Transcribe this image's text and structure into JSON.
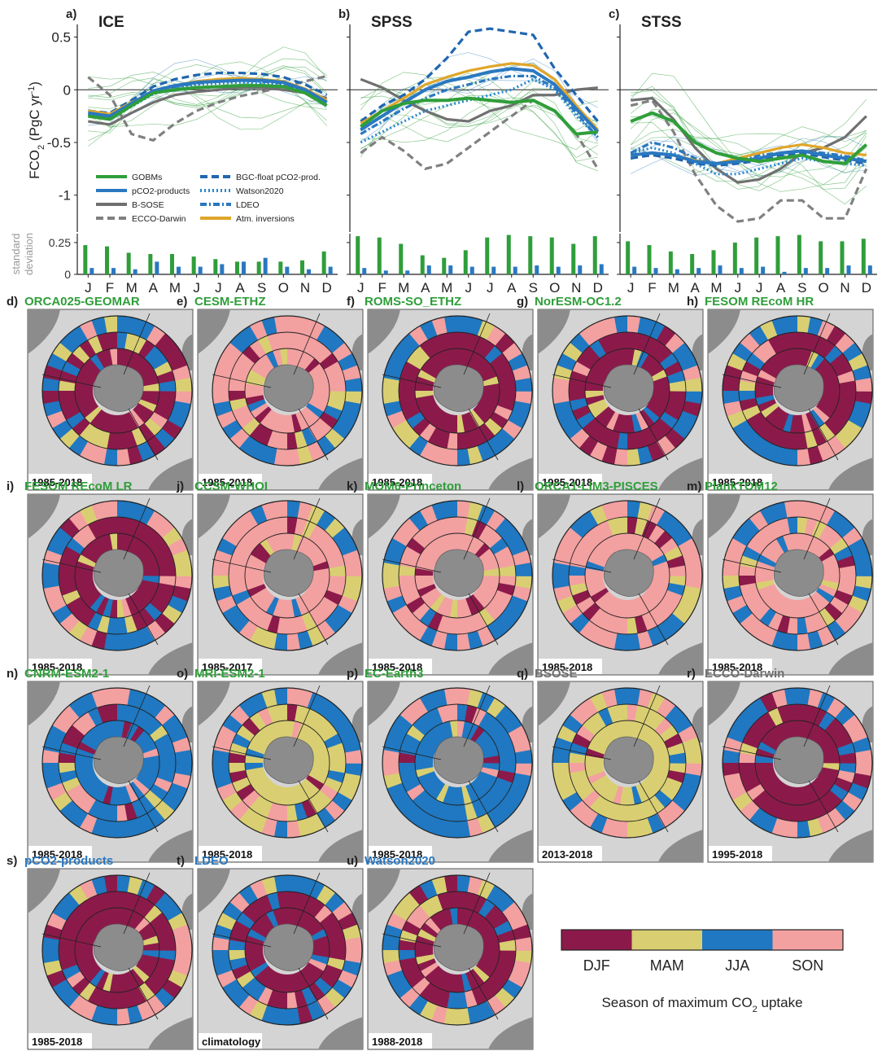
{
  "colors": {
    "GOBMs": "#2f9e3a",
    "pCO2-products": "#2a78c0",
    "B-SOSE": "#707070",
    "ECCO-Darwin": "#808080",
    "BGC-float": "#2066b0",
    "Watson2020": "#2a88d0",
    "LDEO": "#2a78c0",
    "Atm. inversions": "#e0a62a",
    "DJF": "#8b1a4a",
    "MAM": "#d9cf72",
    "JJA": "#1f78c1",
    "SON": "#f3a0a0",
    "land": "#8c8c8c",
    "map_bg": "#d4d4d4"
  },
  "chart_data": [
    {
      "type": "line",
      "panel": "a)",
      "title": "ICE",
      "ylabel_main": "FCO",
      "ylabel_sub": "2",
      "ylabel_units": " (PgC yr",
      "ylabel_sup": "-1",
      "ylabel_close": ")",
      "yticks": [
        "0.5",
        "0",
        "-0.5",
        "-1"
      ],
      "ylim": [
        -1.35,
        0.62
      ],
      "months": [
        "J",
        "F",
        "M",
        "A",
        "M",
        "J",
        "J",
        "A",
        "S",
        "O",
        "N",
        "D"
      ],
      "series": [
        {
          "name": "GOBMs",
          "style": "solid",
          "values": [
            -0.25,
            -0.28,
            -0.15,
            -0.03,
            0.0,
            0.02,
            0.03,
            0.04,
            0.04,
            0.03,
            -0.03,
            -0.15
          ]
        },
        {
          "name": "pCO2-products",
          "style": "solid",
          "values": [
            -0.22,
            -0.25,
            -0.13,
            -0.01,
            0.04,
            0.07,
            0.08,
            0.09,
            0.09,
            0.07,
            0.0,
            -0.12
          ]
        },
        {
          "name": "B-SOSE",
          "style": "solid",
          "values": [
            -0.3,
            -0.33,
            -0.22,
            -0.12,
            -0.05,
            -0.02,
            0.0,
            0.02,
            0.02,
            0.0,
            -0.03,
            -0.08
          ]
        },
        {
          "name": "ECCO-Darwin",
          "style": "dashed",
          "values": [
            0.12,
            -0.05,
            -0.42,
            -0.48,
            -0.32,
            -0.2,
            -0.12,
            -0.06,
            -0.02,
            0.03,
            0.08,
            0.13
          ]
        },
        {
          "name": "BGC-float",
          "style": "dashed",
          "values": [
            -0.2,
            -0.22,
            -0.1,
            0.03,
            0.1,
            0.14,
            0.16,
            0.16,
            0.15,
            0.12,
            0.05,
            -0.05
          ]
        },
        {
          "name": "Watson2020",
          "style": "dotted",
          "values": [
            -0.24,
            -0.27,
            -0.16,
            -0.04,
            0.02,
            0.05,
            0.06,
            0.07,
            0.06,
            0.05,
            -0.01,
            -0.13
          ]
        },
        {
          "name": "LDEO",
          "style": "dashdot",
          "values": [
            -0.23,
            -0.26,
            -0.14,
            -0.02,
            0.03,
            0.06,
            0.08,
            0.09,
            0.08,
            0.06,
            -0.01,
            -0.12
          ]
        },
        {
          "name": "Atm. inversions",
          "style": "solid",
          "values": [
            -0.2,
            -0.23,
            -0.12,
            -0.02,
            0.04,
            0.08,
            0.1,
            0.11,
            0.1,
            0.08,
            0.01,
            -0.1
          ]
        }
      ],
      "std_values_gobm": [
        0.23,
        0.22,
        0.17,
        0.16,
        0.16,
        0.14,
        0.12,
        0.1,
        0.1,
        0.1,
        0.11,
        0.18
      ],
      "std_values_pco2": [
        0.05,
        0.05,
        0.04,
        0.1,
        0.06,
        0.06,
        0.08,
        0.1,
        0.13,
        0.06,
        0.04,
        0.06
      ]
    },
    {
      "type": "line",
      "panel": "b)",
      "title": "SPSS",
      "months": [
        "J",
        "F",
        "M",
        "A",
        "M",
        "J",
        "J",
        "A",
        "S",
        "O",
        "N",
        "D"
      ],
      "series": [
        {
          "name": "GOBMs",
          "style": "solid",
          "values": [
            -0.35,
            -0.2,
            -0.13,
            -0.1,
            -0.1,
            -0.08,
            -0.1,
            -0.12,
            -0.1,
            -0.2,
            -0.42,
            -0.4
          ]
        },
        {
          "name": "pCO2-products",
          "style": "solid",
          "values": [
            -0.38,
            -0.25,
            -0.12,
            0.0,
            0.08,
            0.12,
            0.17,
            0.2,
            0.18,
            0.05,
            -0.18,
            -0.4
          ]
        },
        {
          "name": "B-SOSE",
          "style": "solid",
          "values": [
            0.1,
            0.02,
            -0.1,
            -0.2,
            -0.28,
            -0.3,
            -0.2,
            -0.15,
            -0.05,
            -0.05,
            0.0,
            0.02
          ]
        },
        {
          "name": "ECCO-Darwin",
          "style": "dashed",
          "values": [
            -0.6,
            -0.45,
            -0.58,
            -0.75,
            -0.7,
            -0.55,
            -0.4,
            -0.25,
            -0.1,
            -0.2,
            -0.42,
            -0.75
          ]
        },
        {
          "name": "BGC-float",
          "style": "dashed",
          "values": [
            -0.3,
            -0.15,
            -0.05,
            0.1,
            0.3,
            0.55,
            0.58,
            0.55,
            0.52,
            0.2,
            -0.05,
            -0.3
          ]
        },
        {
          "name": "Watson2020",
          "style": "dotted",
          "values": [
            -0.5,
            -0.4,
            -0.3,
            -0.2,
            -0.15,
            -0.1,
            -0.05,
            0.0,
            0.1,
            0.0,
            -0.25,
            -0.45
          ]
        },
        {
          "name": "LDEO",
          "style": "dashdot",
          "values": [
            -0.42,
            -0.3,
            -0.18,
            -0.08,
            0.0,
            0.05,
            0.1,
            0.13,
            0.13,
            0.02,
            -0.22,
            -0.45
          ]
        },
        {
          "name": "Atm. inversions",
          "style": "solid",
          "values": [
            -0.32,
            -0.2,
            -0.08,
            0.05,
            0.12,
            0.18,
            0.22,
            0.25,
            0.23,
            0.1,
            -0.15,
            -0.38
          ]
        }
      ],
      "std_values_gobm": [
        0.3,
        0.29,
        0.24,
        0.15,
        0.13,
        0.19,
        0.29,
        0.31,
        0.3,
        0.29,
        0.24,
        0.3
      ],
      "std_values_pco2": [
        0.05,
        0.03,
        0.03,
        0.07,
        0.07,
        0.06,
        0.06,
        0.06,
        0.07,
        0.06,
        0.07,
        0.08
      ]
    },
    {
      "type": "line",
      "panel": "c)",
      "title": "STSS",
      "months": [
        "J",
        "F",
        "M",
        "A",
        "M",
        "J",
        "J",
        "A",
        "S",
        "O",
        "N",
        "D"
      ],
      "series": [
        {
          "name": "GOBMs",
          "style": "solid",
          "values": [
            -0.3,
            -0.22,
            -0.3,
            -0.5,
            -0.6,
            -0.65,
            -0.68,
            -0.65,
            -0.62,
            -0.68,
            -0.7,
            -0.52
          ]
        },
        {
          "name": "pCO2-products",
          "style": "solid",
          "values": [
            -0.62,
            -0.6,
            -0.62,
            -0.68,
            -0.7,
            -0.68,
            -0.65,
            -0.6,
            -0.58,
            -0.62,
            -0.65,
            -0.68
          ]
        },
        {
          "name": "B-SOSE",
          "style": "solid",
          "values": [
            -0.1,
            -0.08,
            -0.28,
            -0.55,
            -0.75,
            -0.88,
            -0.85,
            -0.75,
            -0.6,
            -0.55,
            -0.45,
            -0.25
          ]
        },
        {
          "name": "ECCO-Darwin",
          "style": "dashed",
          "values": [
            -0.15,
            -0.1,
            -0.4,
            -0.8,
            -1.1,
            -1.25,
            -1.22,
            -1.05,
            -1.05,
            -1.22,
            -1.22,
            -0.75
          ]
        },
        {
          "name": "BGC-float",
          "style": "dashed",
          "values": [
            -0.65,
            -0.62,
            -0.65,
            -0.7,
            -0.72,
            -0.7,
            -0.67,
            -0.62,
            -0.6,
            -0.64,
            -0.67,
            -0.7
          ]
        },
        {
          "name": "Watson2020",
          "style": "dotted",
          "values": [
            -0.6,
            -0.55,
            -0.6,
            -0.7,
            -0.8,
            -0.8,
            -0.75,
            -0.7,
            -0.65,
            -0.68,
            -0.7,
            -0.72
          ]
        },
        {
          "name": "LDEO",
          "style": "dashdot",
          "values": [
            -0.6,
            -0.5,
            -0.55,
            -0.65,
            -0.7,
            -0.68,
            -0.62,
            -0.6,
            -0.58,
            -0.6,
            -0.63,
            -0.67
          ]
        },
        {
          "name": "Atm. inversions",
          "style": "solid",
          "values": [
            -0.62,
            -0.6,
            -0.62,
            -0.67,
            -0.7,
            -0.65,
            -0.6,
            -0.55,
            -0.52,
            -0.55,
            -0.6,
            -0.62
          ]
        }
      ],
      "std_values_gobm": [
        0.26,
        0.23,
        0.18,
        0.16,
        0.19,
        0.25,
        0.29,
        0.3,
        0.31,
        0.26,
        0.26,
        0.28
      ],
      "std_values_pco2": [
        0.06,
        0.05,
        0.04,
        0.05,
        0.07,
        0.05,
        0.06,
        0.02,
        0.05,
        0.05,
        0.07,
        0.07
      ]
    }
  ],
  "std_axis": {
    "ylabel_1": "standard",
    "ylabel_2": "deviation",
    "yticks": [
      "0.25",
      "0"
    ],
    "ylim": [
      0,
      0.32
    ]
  },
  "legend": {
    "items": [
      {
        "label": "GOBMs",
        "key": "GOBMs",
        "style": "solid"
      },
      {
        "label": "BGC-float pCO2-prod.",
        "key": "BGC-float",
        "style": "dashed"
      },
      {
        "label": "pCO2-products",
        "key": "pCO2-products",
        "style": "solid"
      },
      {
        "label": "Watson2020",
        "key": "Watson2020",
        "style": "dotted"
      },
      {
        "label": "B-SOSE",
        "key": "B-SOSE",
        "style": "solid"
      },
      {
        "label": "LDEO",
        "key": "LDEO",
        "style": "dashdot"
      },
      {
        "label": "ECCO-Darwin",
        "key": "ECCO-Darwin",
        "style": "dashed"
      },
      {
        "label": "Atm. inversions",
        "key": "Atm. inversions",
        "style": "solid"
      }
    ]
  },
  "maps": [
    {
      "letter": "d)",
      "name": "ORCA025-GEOMAR",
      "group": "GOBMs",
      "period": "1985-2018",
      "dominant": "DJF"
    },
    {
      "letter": "e)",
      "name": "CESM-ETHZ",
      "group": "GOBMs",
      "period": "1985-2018",
      "dominant": "SON"
    },
    {
      "letter": "f)",
      "name": "ROMS-SO_ETHZ",
      "group": "GOBMs",
      "period": "1985-2018",
      "dominant": "DJF"
    },
    {
      "letter": "g)",
      "name": "NorESM-OC1.2",
      "group": "GOBMs",
      "period": "1985-2018",
      "dominant": "DJF"
    },
    {
      "letter": "h)",
      "name": "FESOM REcoM HR",
      "group": "GOBMs",
      "period": "1985-2018",
      "dominant": "DJF"
    },
    {
      "letter": "i)",
      "name": "FESOM REcoM LR",
      "group": "GOBMs",
      "period": "1985-2018",
      "dominant": "DJF"
    },
    {
      "letter": "j)",
      "name": "CCSM-WHOI",
      "group": "GOBMs",
      "period": "1985-2017",
      "dominant": "SON"
    },
    {
      "letter": "k)",
      "name": "MOM6-Princeton",
      "group": "GOBMs",
      "period": "1985-2018",
      "dominant": "SON"
    },
    {
      "letter": "l)",
      "name": "ORCA1-LIM3-PISCES",
      "group": "GOBMs",
      "period": "1985-2018",
      "dominant": "SON"
    },
    {
      "letter": "m)",
      "name": "PlankTOM12",
      "group": "GOBMs",
      "period": "1985-2018",
      "dominant": "SON"
    },
    {
      "letter": "n)",
      "name": "CNRM-ESM2-1",
      "group": "GOBMs",
      "period": "1985-2018",
      "dominant": "JJA"
    },
    {
      "letter": "o)",
      "name": "MRI-ESM2-1",
      "group": "GOBMs",
      "period": "1985-2018",
      "dominant": "MAM"
    },
    {
      "letter": "p)",
      "name": "EC-Earth3",
      "group": "GOBMs",
      "period": "1985-2018",
      "dominant": "JJA"
    },
    {
      "letter": "q)",
      "name": "BSOSE",
      "group": "B-SOSE",
      "period": "2013-2018",
      "dominant": "MAM"
    },
    {
      "letter": "r)",
      "name": "ECCO-Darwin",
      "group": "B-SOSE",
      "period": "1995-2018",
      "dominant": "DJF"
    },
    {
      "letter": "s)",
      "name": "pCO2-products",
      "group": "pCO2-products",
      "period": "1985-2018",
      "dominant": "DJF"
    },
    {
      "letter": "t)",
      "name": "LDEO",
      "group": "pCO2-products",
      "period": "climatology",
      "dominant": "DJF"
    },
    {
      "letter": "u)",
      "name": "Watson2020",
      "group": "pCO2-products",
      "period": "1988-2018",
      "dominant": "DJF"
    }
  ],
  "colorbar": {
    "labels": [
      "DJF",
      "MAM",
      "JJA",
      "SON"
    ],
    "title_main": "Season of maximum CO",
    "title_sub": "2",
    "title_end": " uptake"
  }
}
